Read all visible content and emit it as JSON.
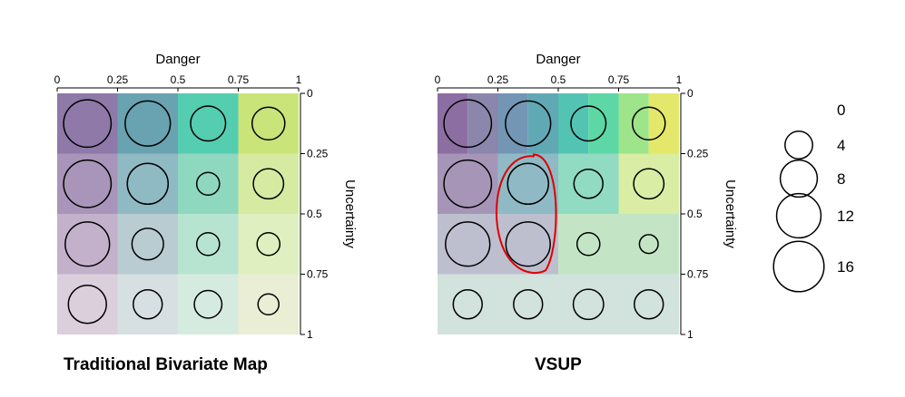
{
  "chart_data": [
    {
      "type": "heatmap",
      "title": "Traditional Bivariate Map",
      "xlabel": "Danger",
      "ylabel": "Uncertainty",
      "x_ticks": [
        "0",
        "0.25",
        "0.5",
        "0.75",
        "1"
      ],
      "y_ticks": [
        "0",
        "0.25",
        "0.5",
        "0.75",
        "1"
      ],
      "xlim": [
        0,
        1
      ],
      "ylim": [
        0,
        1
      ],
      "cells": [
        {
          "danger": [
            0,
            0.25
          ],
          "uncertainty": [
            0,
            0.25
          ],
          "color": "#8e79a8",
          "value": 14
        },
        {
          "danger": [
            0.25,
            0.5
          ],
          "uncertainty": [
            0,
            0.25
          ],
          "color": "#69a2b0",
          "value": 12.5
        },
        {
          "danger": [
            0.5,
            0.75
          ],
          "uncertainty": [
            0,
            0.25
          ],
          "color": "#55cdb0",
          "value": 7
        },
        {
          "danger": [
            0.75,
            1
          ],
          "uncertainty": [
            0,
            0.25
          ],
          "color": "#c9e478",
          "value": 6
        },
        {
          "danger": [
            0,
            0.25
          ],
          "uncertainty": [
            0.25,
            0.5
          ],
          "color": "#a895b9",
          "value": 14
        },
        {
          "danger": [
            0.25,
            0.5
          ],
          "uncertainty": [
            0.25,
            0.5
          ],
          "color": "#8fbac4",
          "value": 10
        },
        {
          "danger": [
            0.5,
            0.75
          ],
          "uncertainty": [
            0.25,
            0.5
          ],
          "color": "#8ed8bf",
          "value": 2.5
        },
        {
          "danger": [
            0.75,
            1
          ],
          "uncertainty": [
            0.25,
            0.5
          ],
          "color": "#d6eaa2",
          "value": 5
        },
        {
          "danger": [
            0,
            0.25
          ],
          "uncertainty": [
            0.5,
            0.75
          ],
          "color": "#c3b1cc",
          "value": 12
        },
        {
          "danger": [
            0.25,
            0.5
          ],
          "uncertainty": [
            0.5,
            0.75
          ],
          "color": "#b8ccd2",
          "value": 5.5
        },
        {
          "danger": [
            0.5,
            0.75
          ],
          "uncertainty": [
            0.5,
            0.75
          ],
          "color": "#b7e4d0",
          "value": 2.5
        },
        {
          "danger": [
            0.75,
            1
          ],
          "uncertainty": [
            0.5,
            0.75
          ],
          "color": "#e0efbf",
          "value": 2.5
        },
        {
          "danger": [
            0,
            0.25
          ],
          "uncertainty": [
            0.75,
            1
          ],
          "color": "#dbcfdc",
          "value": 8.5
        },
        {
          "danger": [
            0.25,
            0.5
          ],
          "uncertainty": [
            0.75,
            1
          ],
          "color": "#d6e0e2",
          "value": 4.5
        },
        {
          "danger": [
            0.5,
            0.75
          ],
          "uncertainty": [
            0.75,
            1
          ],
          "color": "#d6ebe0",
          "value": 4
        },
        {
          "danger": [
            0.75,
            1
          ],
          "uncertainty": [
            0.75,
            1
          ],
          "color": "#e9eed5",
          "value": 2
        }
      ]
    },
    {
      "type": "heatmap",
      "title": "VSUP",
      "xlabel": "Danger",
      "ylabel": "Uncertainty",
      "x_ticks": [
        "0",
        "0.25",
        "0.5",
        "0.75",
        "1"
      ],
      "y_ticks": [
        "0",
        "0.25",
        "0.5",
        "0.75",
        "1"
      ],
      "xlim": [
        0,
        1
      ],
      "ylim": [
        0,
        1
      ],
      "cells": [
        {
          "danger": [
            0,
            0.125
          ],
          "uncertainty": [
            0,
            0.25
          ],
          "color": "#8d6ea2",
          "value": null
        },
        {
          "danger": [
            0.125,
            0.25
          ],
          "uncertainty": [
            0,
            0.25
          ],
          "color": "#8a86ac",
          "value": null
        },
        {
          "danger": [
            0.25,
            0.375
          ],
          "uncertainty": [
            0,
            0.25
          ],
          "color": "#7296b3",
          "value": null
        },
        {
          "danger": [
            0.375,
            0.5
          ],
          "uncertainty": [
            0,
            0.25
          ],
          "color": "#60a8b4",
          "value": null
        },
        {
          "danger": [
            0.5,
            0.625
          ],
          "uncertainty": [
            0,
            0.25
          ],
          "color": "#53c4b3",
          "value": null
        },
        {
          "danger": [
            0.625,
            0.75
          ],
          "uncertainty": [
            0,
            0.25
          ],
          "color": "#5dd7a6",
          "value": null
        },
        {
          "danger": [
            0.75,
            0.875
          ],
          "uncertainty": [
            0,
            0.25
          ],
          "color": "#9ee48a",
          "value": null
        },
        {
          "danger": [
            0.875,
            1
          ],
          "uncertainty": [
            0,
            0.25
          ],
          "color": "#e3e86a",
          "value": null
        },
        {
          "danger": [
            0,
            0.25
          ],
          "uncertainty": [
            0.25,
            0.5
          ],
          "color": "#a795b8",
          "value": null
        },
        {
          "danger": [
            0.25,
            0.5
          ],
          "uncertainty": [
            0.25,
            0.5
          ],
          "color": "#8fbac5",
          "value": null
        },
        {
          "danger": [
            0.5,
            0.75
          ],
          "uncertainty": [
            0.25,
            0.5
          ],
          "color": "#90dbc2",
          "value": null
        },
        {
          "danger": [
            0.75,
            1
          ],
          "uncertainty": [
            0.25,
            0.5
          ],
          "color": "#d9eda4",
          "value": null
        },
        {
          "danger": [
            0,
            0.5
          ],
          "uncertainty": [
            0.5,
            0.75
          ],
          "color": "#bdbfcf",
          "value": null
        },
        {
          "danger": [
            0.5,
            1
          ],
          "uncertainty": [
            0.5,
            0.75
          ],
          "color": "#c3e5c6",
          "value": null
        },
        {
          "danger": [
            0,
            1
          ],
          "uncertainty": [
            0.75,
            1
          ],
          "color": "#d2e2dc",
          "value": null
        }
      ],
      "glyphs": [
        {
          "danger": 0.125,
          "uncertainty": 0.125,
          "value": 14
        },
        {
          "danger": 0.375,
          "uncertainty": 0.125,
          "value": 12.5
        },
        {
          "danger": 0.625,
          "uncertainty": 0.125,
          "value": 7
        },
        {
          "danger": 0.875,
          "uncertainty": 0.125,
          "value": 6
        },
        {
          "danger": 0.125,
          "uncertainty": 0.375,
          "value": 14
        },
        {
          "danger": 0.375,
          "uncertainty": 0.375,
          "value": 10
        },
        {
          "danger": 0.625,
          "uncertainty": 0.375,
          "value": 4.5
        },
        {
          "danger": 0.875,
          "uncertainty": 0.375,
          "value": 5
        },
        {
          "danger": 0.125,
          "uncertainty": 0.625,
          "value": 12
        },
        {
          "danger": 0.375,
          "uncertainty": 0.625,
          "value": 12
        },
        {
          "danger": 0.625,
          "uncertainty": 0.625,
          "value": 2.5
        },
        {
          "danger": 0.875,
          "uncertainty": 0.625,
          "value": 1.5
        },
        {
          "danger": 0.125,
          "uncertainty": 0.875,
          "value": 4.5
        },
        {
          "danger": 0.375,
          "uncertainty": 0.875,
          "value": 4.5
        },
        {
          "danger": 0.625,
          "uncertainty": 0.875,
          "value": 5
        },
        {
          "danger": 0.875,
          "uncertainty": 0.875,
          "value": 4.5
        }
      ],
      "annotation": {
        "shape": "hand-drawn loop",
        "color": "#e00000",
        "encloses": {
          "danger": [
            0.25,
            0.5
          ],
          "uncertainty": [
            0.25,
            0.75
          ]
        }
      }
    }
  ],
  "size_legend": [
    {
      "label": "0",
      "value": 0
    },
    {
      "label": "4",
      "value": 4
    },
    {
      "label": "8",
      "value": 8
    },
    {
      "label": "12",
      "value": 12
    },
    {
      "label": "16",
      "value": 16
    }
  ]
}
